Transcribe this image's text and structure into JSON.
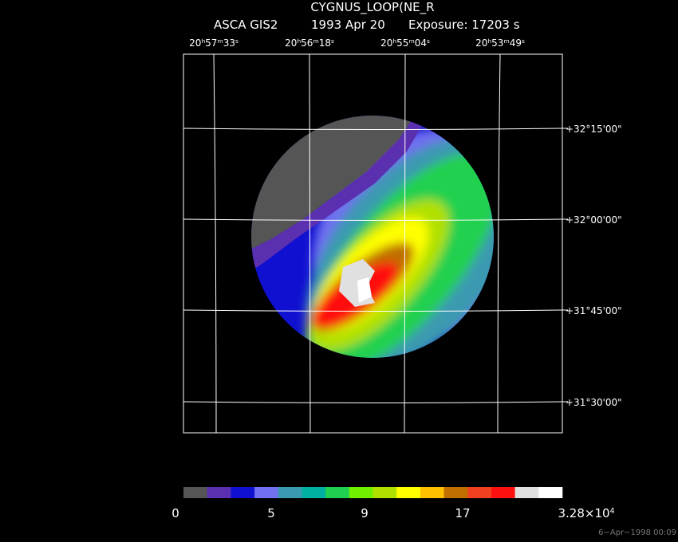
{
  "header": {
    "title": "CYGNUS_LOOP(NE_R",
    "instrument": "ASCA GIS2",
    "date": "1993 Apr 20",
    "exposure": "Exposure: 17203 s"
  },
  "ra_labels": [
    [
      "20",
      "h",
      "57",
      "m",
      "33",
      "s"
    ],
    [
      "20",
      "h",
      "56",
      "m",
      "18",
      "s"
    ],
    [
      "20",
      "h",
      "55",
      "m",
      "04",
      "s"
    ],
    [
      "20",
      "h",
      "53",
      "m",
      "49",
      "s"
    ]
  ],
  "dec_labels": [
    "+32°15'00\"",
    "+32°00'00\"",
    "+31°45'00\"",
    "+31°30'00\""
  ],
  "colorbar": {
    "colors": [
      "#555555",
      "#5a2fb0",
      "#1010d0",
      "#7070f0",
      "#3a9ab0",
      "#00b0a0",
      "#20d050",
      "#70f000",
      "#b0e000",
      "#ffff00",
      "#ffc000",
      "#c07000",
      "#f04020",
      "#ff1010",
      "#e0e0e0",
      "#ffffff"
    ],
    "labels": [
      [
        "0"
      ],
      [
        "5"
      ],
      [
        "9"
      ],
      [
        "17"
      ],
      [
        "3.28×10",
        "4"
      ]
    ]
  },
  "stamp": "6−Apr−1998 00:09"
}
